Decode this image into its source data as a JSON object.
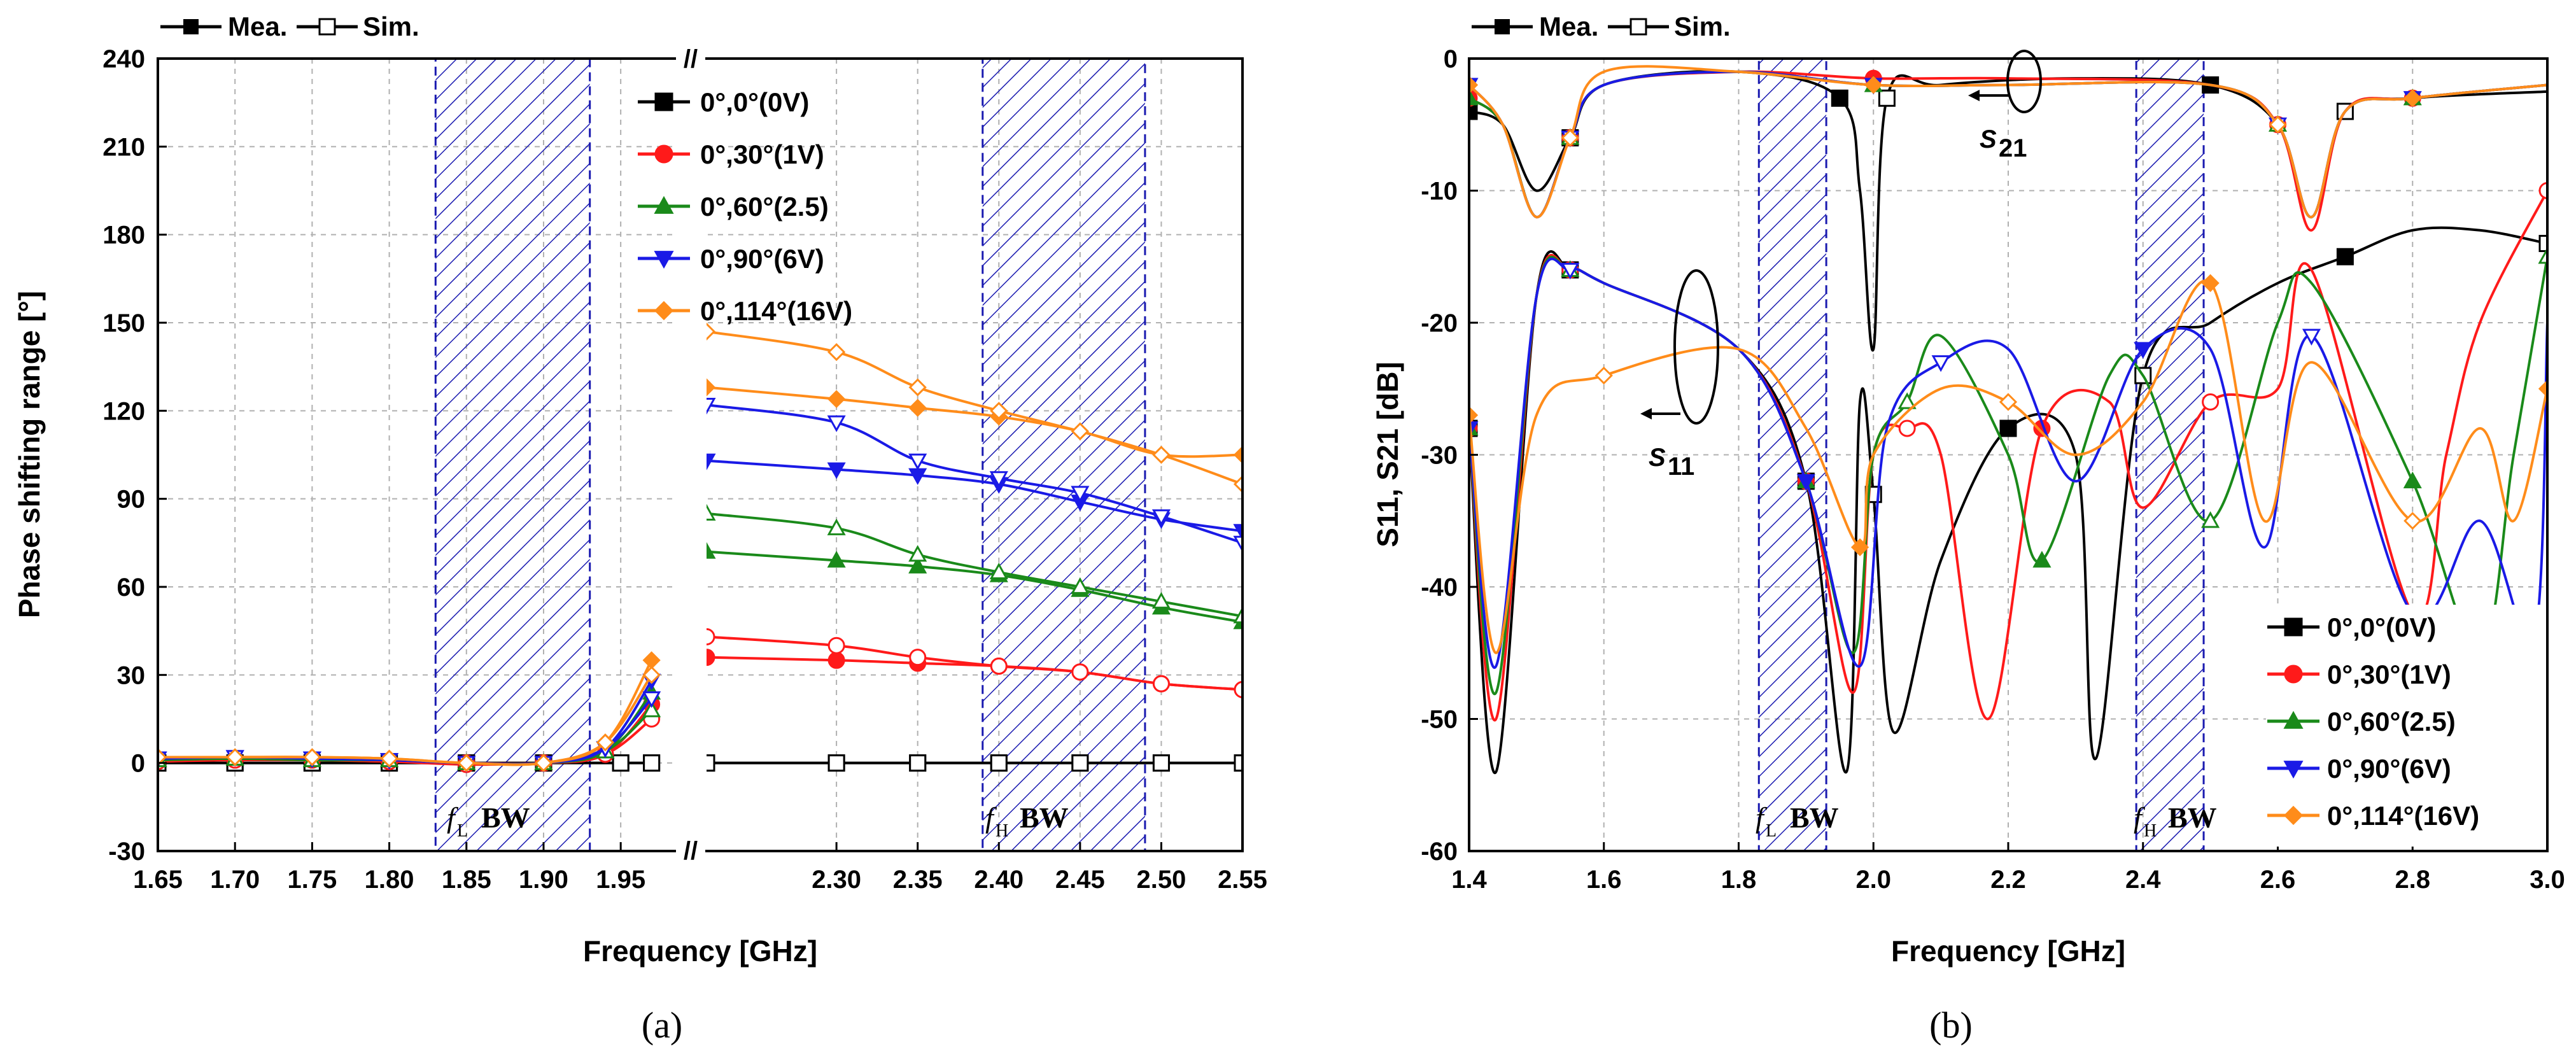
{
  "chart_data": [
    {
      "id": "a",
      "type": "line",
      "caption": "(a)",
      "xlabel": "Frequency [GHz]",
      "ylabel": "Phase shifting range [°]",
      "ylim": [
        -30,
        240
      ],
      "yticks": [
        -30,
        0,
        30,
        60,
        90,
        120,
        150,
        180,
        210,
        240
      ],
      "xticks_left": [
        "1.65",
        "1.70",
        "1.75",
        "1.80",
        "1.85",
        "1.90",
        "1.95"
      ],
      "xticks_right": [
        "2.30",
        "2.35",
        "2.40",
        "2.45",
        "2.50",
        "2.55"
      ],
      "x_break": "//",
      "marker_legend": {
        "measured": "Mea.",
        "simulated": "Sim."
      },
      "band_labels": [
        {
          "sym": "f",
          "sub": "L",
          "text": "BW"
        },
        {
          "sym": "f",
          "sub": "H",
          "text": "BW"
        }
      ],
      "bands": [
        [
          1.83,
          1.93
        ],
        [
          2.39,
          2.49
        ]
      ],
      "series": [
        {
          "name": "0°,0°(0V)",
          "color": "#000000",
          "marker": "square",
          "measured": {
            "x": [
              1.65,
              1.7,
              1.75,
              1.8,
              1.85,
              1.9,
              1.95,
              1.97,
              2.22,
              2.3,
              2.35,
              2.4,
              2.45,
              2.5,
              2.55
            ],
            "y": [
              0,
              0,
              0,
              0,
              0,
              0,
              0,
              0,
              0,
              0,
              0,
              0,
              0,
              0,
              0
            ]
          },
          "simulated": {
            "x": [
              1.65,
              1.7,
              1.75,
              1.8,
              1.85,
              1.9,
              1.95,
              1.97,
              2.22,
              2.3,
              2.35,
              2.4,
              2.45,
              2.5,
              2.55
            ],
            "y": [
              0,
              0,
              0,
              0,
              0,
              0,
              0,
              0,
              0,
              0,
              0,
              0,
              0,
              0,
              0
            ]
          }
        },
        {
          "name": "0°,30°(1V)",
          "color": "#ff1a1a",
          "marker": "circle",
          "measured": {
            "x": [
              1.65,
              1.7,
              1.75,
              1.8,
              1.85,
              1.9,
              1.94,
              1.97,
              2.22,
              2.3,
              2.35,
              2.4,
              2.45,
              2.5,
              2.55
            ],
            "y": [
              1,
              1,
              1,
              0.5,
              0,
              0,
              3,
              20,
              36,
              35,
              34,
              33,
              31,
              27,
              25
            ]
          },
          "simulated": {
            "x": [
              1.65,
              1.7,
              1.75,
              1.8,
              1.85,
              1.9,
              1.94,
              1.97,
              2.22,
              2.3,
              2.35,
              2.4,
              2.45,
              2.5,
              2.55
            ],
            "y": [
              0.5,
              1,
              1,
              0.5,
              -0.5,
              0,
              3,
              15,
              43,
              40,
              36,
              33,
              31,
              27,
              25
            ]
          }
        },
        {
          "name": "0°,60°(2.5)",
          "color": "#1a8a1a",
          "marker": "triangle-up",
          "measured": {
            "x": [
              1.65,
              1.7,
              1.75,
              1.8,
              1.85,
              1.9,
              1.94,
              1.97,
              2.22,
              2.3,
              2.35,
              2.4,
              2.45,
              2.5,
              2.55
            ],
            "y": [
              1,
              1.5,
              1,
              1,
              0,
              0,
              4,
              24,
              72,
              69,
              67,
              64,
              59,
              53,
              48
            ]
          },
          "simulated": {
            "x": [
              1.65,
              1.7,
              1.75,
              1.8,
              1.85,
              1.9,
              1.94,
              1.97,
              2.22,
              2.3,
              2.35,
              2.4,
              2.45,
              2.5,
              2.55
            ],
            "y": [
              1,
              1.5,
              1,
              1,
              0,
              0,
              4,
              18,
              85,
              80,
              71,
              65,
              60,
              55,
              50
            ]
          }
        },
        {
          "name": "0°,90°(6V)",
          "color": "#1a1ae6",
          "marker": "triangle-down",
          "measured": {
            "x": [
              1.65,
              1.7,
              1.75,
              1.8,
              1.85,
              1.9,
              1.94,
              1.97,
              2.22,
              2.3,
              2.35,
              2.4,
              2.45,
              2.5,
              2.55
            ],
            "y": [
              1.5,
              2,
              1.5,
              1,
              0,
              0,
              5,
              28,
              103,
              100,
              98,
              95,
              89,
              83,
              79
            ]
          },
          "simulated": {
            "x": [
              1.65,
              1.7,
              1.75,
              1.8,
              1.85,
              1.9,
              1.94,
              1.97,
              2.22,
              2.3,
              2.35,
              2.4,
              2.45,
              2.5,
              2.55
            ],
            "y": [
              1.5,
              2,
              1.5,
              1,
              0,
              0,
              5,
              22,
              122,
              116,
              103,
              97,
              92,
              84,
              75
            ]
          }
        },
        {
          "name": "0°,114°(16V)",
          "color": "#ff8c1a",
          "marker": "diamond",
          "measured": {
            "x": [
              1.65,
              1.7,
              1.75,
              1.8,
              1.85,
              1.9,
              1.94,
              1.97,
              2.22,
              2.3,
              2.35,
              2.4,
              2.45,
              2.5,
              2.55
            ],
            "y": [
              2,
              2,
              2,
              1.5,
              0,
              0,
              7,
              35,
              128,
              124,
              121,
              118,
              113,
              105,
              105
            ]
          },
          "simulated": {
            "x": [
              1.65,
              1.7,
              1.75,
              1.8,
              1.85,
              1.9,
              1.94,
              1.97,
              2.22,
              2.3,
              2.35,
              2.4,
              2.45,
              2.5,
              2.55
            ],
            "y": [
              2,
              2,
              2,
              1.5,
              0,
              0,
              7,
              30,
              147,
              140,
              128,
              120,
              113,
              105,
              95
            ]
          }
        }
      ]
    },
    {
      "id": "b",
      "type": "line",
      "caption": "(b)",
      "xlabel": "Frequency [GHz]",
      "ylabel": "S11, S21 [dB]",
      "xlim": [
        1.4,
        3.0
      ],
      "ylim": [
        -60,
        0
      ],
      "xticks": [
        "1.4",
        "1.6",
        "1.8",
        "2.0",
        "2.2",
        "2.4",
        "2.6",
        "2.8",
        "3.0"
      ],
      "yticks": [
        "0",
        "-10",
        "-20",
        "-30",
        "-40",
        "-50",
        "-60"
      ],
      "marker_legend": {
        "measured": "Mea.",
        "simulated": "Sim."
      },
      "band_labels": [
        {
          "sym": "f",
          "sub": "L",
          "text": "BW"
        },
        {
          "sym": "f",
          "sub": "H",
          "text": "BW"
        }
      ],
      "bands": [
        [
          1.83,
          1.93
        ],
        [
          2.39,
          2.49
        ]
      ],
      "annotations": [
        {
          "label": "S",
          "sub": "21"
        },
        {
          "label": "S",
          "sub": "11"
        }
      ],
      "series": [
        {
          "name": "0°,0°(0V)",
          "color": "#000000",
          "marker": "square",
          "s21": {
            "x": [
              1.4,
              1.45,
              1.5,
              1.55,
              1.6,
              1.8,
              1.95,
              1.98,
              2.0,
              2.02,
              2.1,
              2.3,
              2.5,
              2.6,
              2.65,
              2.7,
              2.8,
              3.0
            ],
            "y": [
              -4,
              -5,
              -10,
              -6,
              -2,
              -1,
              -3,
              -10,
              -22,
              -3,
              -2,
              -1.5,
              -2,
              -5,
              -12,
              -4,
              -3,
              -2.5
            ]
          },
          "s11": {
            "x": [
              1.4,
              1.44,
              1.5,
              1.55,
              1.6,
              1.8,
              1.9,
              1.96,
              1.98,
              2.0,
              2.03,
              2.1,
              2.2,
              2.3,
              2.33,
              2.4,
              2.5,
              2.6,
              2.7,
              2.8,
              2.9,
              3.0
            ],
            "y": [
              -28,
              -54,
              -18,
              -16,
              -17,
              -22,
              -32,
              -54,
              -26,
              -33,
              -51,
              -38,
              -28,
              -30,
              -53,
              -24,
              -20,
              -17,
              -15,
              -13,
              -13,
              -14
            ]
          }
        },
        {
          "name": "0°,30°(1V)",
          "color": "#ff1a1a",
          "marker": "circle",
          "s21": {
            "x": [
              1.4,
              1.45,
              1.5,
              1.55,
              1.6,
              1.8,
              2.0,
              2.2,
              2.5,
              2.6,
              2.65,
              2.7,
              2.8,
              3.0
            ],
            "y": [
              -3,
              -5,
              -12,
              -6,
              -2,
              -1,
              -1.5,
              -1.5,
              -2,
              -5,
              -13,
              -4,
              -3,
              -2
            ]
          },
          "s11": {
            "x": [
              1.4,
              1.44,
              1.5,
              1.55,
              1.6,
              1.8,
              1.9,
              1.97,
              2.0,
              2.05,
              2.1,
              2.17,
              2.25,
              2.35,
              2.4,
              2.5,
              2.6,
              2.65,
              2.8,
              2.85,
              2.9,
              3.0
            ],
            "y": [
              -28,
              -50,
              -18,
              -16,
              -17,
              -22,
              -32,
              -48,
              -30,
              -28,
              -30,
              -50,
              -28,
              -26,
              -34,
              -26,
              -25,
              -16,
              -42,
              -30,
              -20,
              -10
            ]
          }
        },
        {
          "name": "0°,60°(2.5)",
          "color": "#1a8a1a",
          "marker": "triangle-up",
          "s21": {
            "x": [
              1.4,
              1.45,
              1.5,
              1.55,
              1.6,
              1.8,
              2.0,
              2.2,
              2.5,
              2.6,
              2.65,
              2.7,
              2.8,
              3.0
            ],
            "y": [
              -3,
              -5,
              -12,
              -6,
              -2,
              -1,
              -2,
              -2,
              -2,
              -5,
              -12,
              -4,
              -3,
              -2
            ]
          },
          "s11": {
            "x": [
              1.4,
              1.44,
              1.5,
              1.55,
              1.6,
              1.8,
              1.9,
              1.97,
              2.0,
              2.05,
              2.1,
              2.2,
              2.25,
              2.35,
              2.4,
              2.5,
              2.6,
              2.65,
              2.8,
              2.9,
              2.95,
              3.0
            ],
            "y": [
              -28,
              -48,
              -18,
              -16,
              -17,
              -22,
              -32,
              -45,
              -30,
              -26,
              -21,
              -30,
              -38,
              -24,
              -24,
              -35,
              -20,
              -17,
              -32,
              -45,
              -30,
              -15
            ]
          }
        },
        {
          "name": "0°,90°(6V)",
          "color": "#1a1ae6",
          "marker": "triangle-down",
          "s21": {
            "x": [
              1.4,
              1.45,
              1.5,
              1.55,
              1.6,
              1.8,
              2.0,
              2.2,
              2.5,
              2.6,
              2.65,
              2.7,
              2.8,
              3.0
            ],
            "y": [
              -2,
              -5,
              -12,
              -6,
              -2,
              -1,
              -2,
              -2,
              -2,
              -5,
              -12,
              -4,
              -3,
              -2
            ]
          },
          "s11": {
            "x": [
              1.4,
              1.44,
              1.5,
              1.55,
              1.6,
              1.8,
              1.9,
              1.98,
              2.02,
              2.1,
              2.2,
              2.3,
              2.4,
              2.5,
              2.58,
              2.65,
              2.8,
              2.9,
              2.98,
              3.0
            ],
            "y": [
              -28,
              -46,
              -18,
              -16,
              -17,
              -22,
              -32,
              -46,
              -28,
              -23,
              -22,
              -32,
              -22,
              -22,
              -37,
              -21,
              -42,
              -35,
              -44,
              -20
            ]
          }
        },
        {
          "name": "0°,114°(16V)",
          "color": "#ff8c1a",
          "marker": "diamond",
          "s21": {
            "x": [
              1.4,
              1.45,
              1.5,
              1.55,
              1.6,
              1.8,
              2.0,
              2.2,
              2.5,
              2.6,
              2.65,
              2.7,
              2.8,
              3.0
            ],
            "y": [
              -2,
              -5,
              -12,
              -6,
              -1,
              -1,
              -2,
              -2,
              -2,
              -5,
              -12,
              -4,
              -3,
              -2
            ]
          },
          "s11": {
            "x": [
              1.4,
              1.44,
              1.5,
              1.6,
              1.8,
              1.9,
              1.98,
              2.0,
              2.1,
              2.2,
              2.3,
              2.4,
              2.5,
              2.58,
              2.65,
              2.8,
              2.9,
              2.95,
              3.0
            ],
            "y": [
              -27,
              -45,
              -27,
              -24,
              -22,
              -28,
              -37,
              -30,
              -25,
              -26,
              -30,
              -26,
              -17,
              -35,
              -23,
              -35,
              -28,
              -35,
              -25
            ]
          }
        }
      ]
    }
  ]
}
